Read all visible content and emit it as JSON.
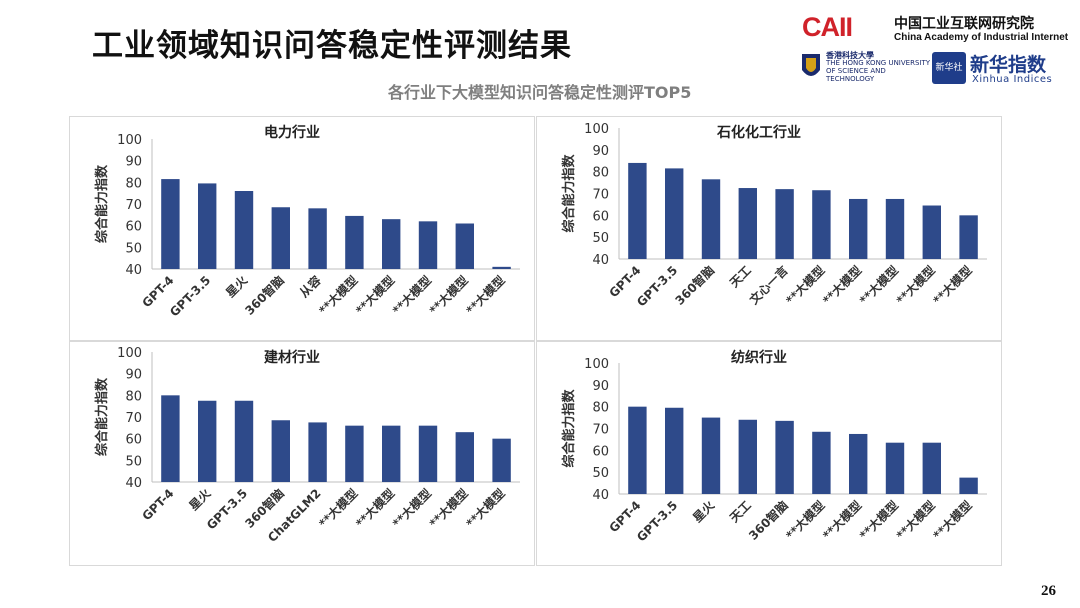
{
  "header": {
    "title": "工业领域知识问答稳定性评测结果",
    "subtitle": "各行业下大模型知识问答稳定性测评TOP5",
    "page_number": "26"
  },
  "logos": {
    "caii_mark": "CAII",
    "caii_cn": "中国工业互联网研究院",
    "caii_en": "China Academy of Industrial Internet",
    "hkust_cn": "香港科技大學",
    "hkust_en": "THE HONG KONG UNIVERSITY OF SCIENCE AND TECHNOLOGY",
    "xinhua_badge": "新华社",
    "xinhua_cn": "新华指数",
    "xinhua_en": "Xinhua Indices"
  },
  "colors": {
    "bar": "#2e4a8a",
    "accent": "#1f7fd1",
    "grid": "#d9d9d9"
  },
  "chart_data": [
    {
      "type": "bar",
      "title": "电力行业",
      "ylabel": "综合能力指数",
      "ylim": [
        40,
        100
      ],
      "yticks": [
        40,
        50,
        60,
        70,
        80,
        90,
        100
      ],
      "categories": [
        "GPT-4",
        "GPT-3.5",
        "星火",
        "360智脑",
        "从容",
        "**大模型",
        "**大模型",
        "**大模型",
        "**大模型",
        "**大模型"
      ],
      "values": [
        81.5,
        79.5,
        76,
        68.5,
        68,
        64.5,
        63,
        62,
        61,
        41
      ]
    },
    {
      "type": "bar",
      "title": "石化化工行业",
      "ylabel": "综合能力指数",
      "ylim": [
        40,
        100
      ],
      "yticks": [
        40,
        50,
        60,
        70,
        80,
        90,
        100
      ],
      "categories": [
        "GPT-4",
        "GPT-3.5",
        "360智脑",
        "天工",
        "文心一言",
        "**大模型",
        "**大模型",
        "**大模型",
        "**大模型",
        "**大模型"
      ],
      "values": [
        84,
        81.5,
        76.5,
        72.5,
        72,
        71.5,
        67.5,
        67.5,
        64.5,
        60
      ]
    },
    {
      "type": "bar",
      "title": "建材行业",
      "ylabel": "综合能力指数",
      "ylim": [
        40,
        100
      ],
      "yticks": [
        40,
        50,
        60,
        70,
        80,
        90,
        100
      ],
      "categories": [
        "GPT-4",
        "星火",
        "GPT-3.5",
        "360智脑",
        "ChatGLM2",
        "**大模型",
        "**大模型",
        "**大模型",
        "**大模型",
        "**大模型"
      ],
      "values": [
        80,
        77.5,
        77.5,
        68.5,
        67.5,
        66,
        66,
        66,
        63,
        60
      ]
    },
    {
      "type": "bar",
      "title": "纺织行业",
      "ylabel": "综合能力指数",
      "ylim": [
        40,
        100
      ],
      "yticks": [
        40,
        50,
        60,
        70,
        80,
        90,
        100
      ],
      "categories": [
        "GPT-4",
        "GPT-3.5",
        "星火",
        "天工",
        "360智脑",
        "**大模型",
        "**大模型",
        "**大模型",
        "**大模型",
        "**大模型"
      ],
      "values": [
        80,
        79.5,
        75,
        74,
        73.5,
        68.5,
        67.5,
        63.5,
        63.5,
        47.5
      ]
    }
  ]
}
